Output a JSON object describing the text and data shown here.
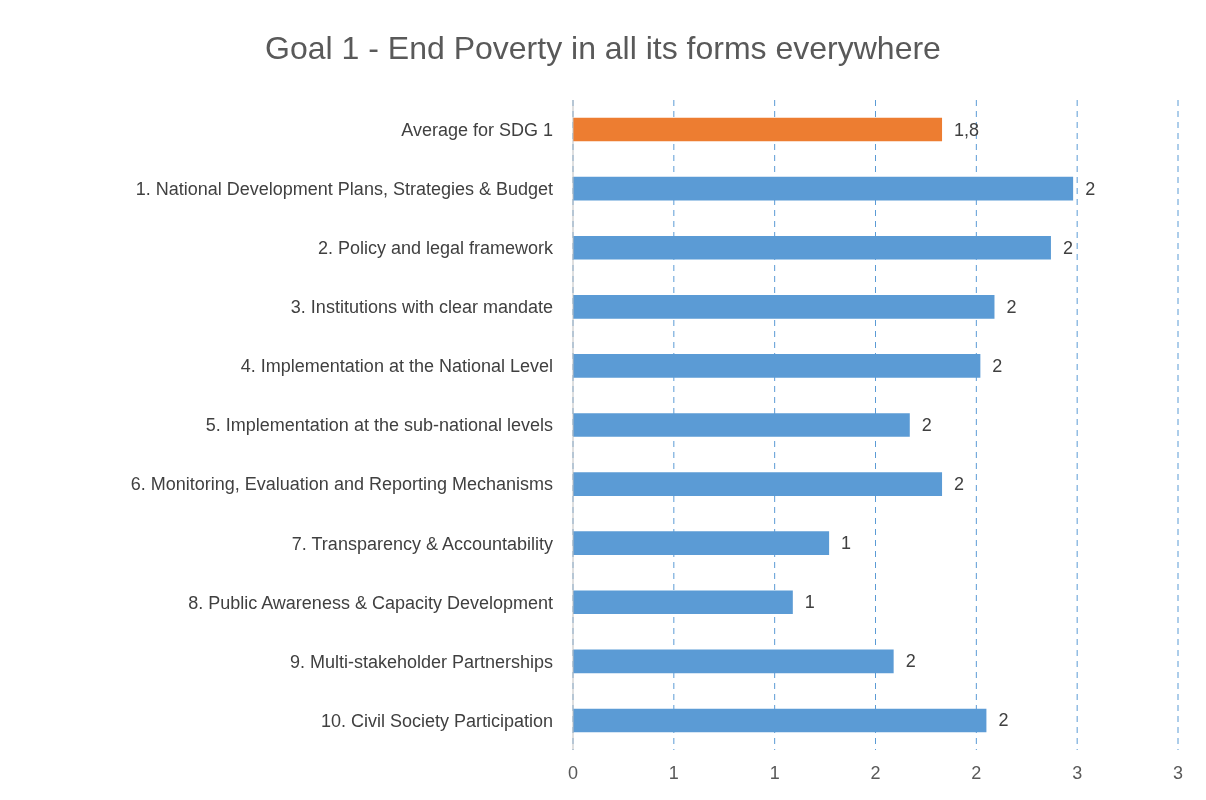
{
  "chart_data": {
    "type": "bar",
    "orientation": "horizontal",
    "title": "Goal 1 - End Poverty in all its forms everywhere",
    "categories": [
      "Average for SDG 1",
      "1. National Development Plans, Strategies & Budget",
      "2. Policy and legal framework",
      "3. Institutions with clear mandate",
      "4. Implementation at the National Level",
      "5. Implementation at the sub-national levels",
      "6. Monitoring, Evaluation and Reporting  Mechanisms",
      "7. Transparency & Accountability",
      "8. Public Awareness & Capacity Development",
      "9. Multi-stakeholder Partnerships",
      "10. Civil Society Participation"
    ],
    "values": [
      1.83,
      2.48,
      2.37,
      2.09,
      2.02,
      1.67,
      1.83,
      1.27,
      1.09,
      1.59,
      2.05
    ],
    "value_labels": [
      "1,8",
      "2",
      "2",
      "2",
      "2",
      "2",
      "2",
      "1",
      "1",
      "2",
      "2"
    ],
    "colors": [
      "#ed7d31",
      "#5b9bd5",
      "#5b9bd5",
      "#5b9bd5",
      "#5b9bd5",
      "#5b9bd5",
      "#5b9bd5",
      "#5b9bd5",
      "#5b9bd5",
      "#5b9bd5",
      "#5b9bd5"
    ],
    "xlim": [
      0,
      3
    ],
    "xticks": [
      0,
      {
        "value": 0.5,
        "label": "1"
      },
      1,
      {
        "value": 1.5,
        "label": "2"
      },
      2,
      {
        "value": 2.5,
        "label": "3"
      },
      3
    ],
    "grid": "x"
  }
}
